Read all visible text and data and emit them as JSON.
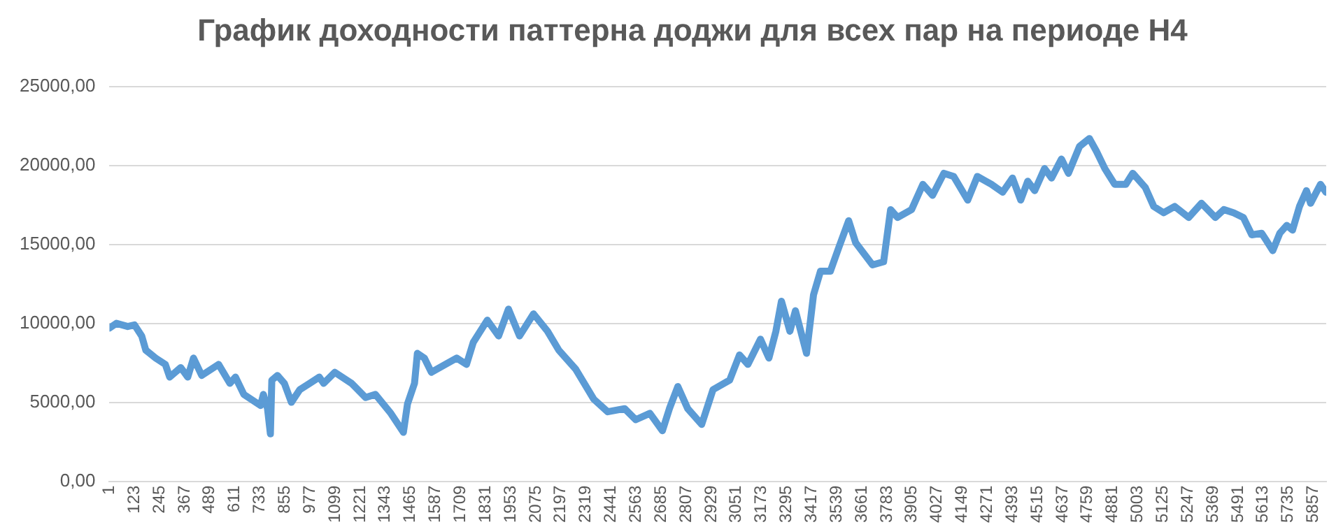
{
  "chart_data": {
    "type": "line",
    "title": "График доходности паттерна доджи для всех пар на периоде H4",
    "x": [
      1,
      35,
      90,
      123,
      158,
      178,
      226,
      273,
      294,
      348,
      382,
      410,
      450,
      532,
      587,
      614,
      655,
      736,
      750,
      770,
      784,
      791,
      818,
      852,
      886,
      927,
      975,
      1022,
      1043,
      1097,
      1179,
      1247,
      1295,
      1370,
      1431,
      1451,
      1485,
      1499,
      1533,
      1567,
      1635,
      1690,
      1738,
      1771,
      1839,
      1894,
      1942,
      1996,
      2064,
      2132,
      2187,
      2269,
      2357,
      2425,
      2507,
      2561,
      2630,
      2691,
      2725,
      2766,
      2814,
      2882,
      2937,
      3018,
      3066,
      3107,
      3168,
      3209,
      3243,
      3270,
      3311,
      3338,
      3392,
      3426,
      3460,
      3508,
      3549,
      3597,
      3631,
      3713,
      3767,
      3801,
      3835,
      3903,
      3958,
      4005,
      4060,
      4108,
      4176,
      4223,
      4291,
      4346,
      4394,
      4434,
      4468,
      4502,
      4550,
      4584,
      4632,
      4666,
      4720,
      4768,
      4802,
      4843,
      4891,
      4945,
      4979,
      5040,
      5081,
      5129,
      5183,
      5251,
      5313,
      5381,
      5422,
      5470,
      5517,
      5558,
      5606,
      5626,
      5660,
      5694,
      5728,
      5756,
      5790,
      5824,
      5844,
      5892,
      5919
    ],
    "series": [
      {
        "color": "#5b9bd5",
        "values": [
          9700,
          10000,
          9800,
          9900,
          9200,
          8300,
          7800,
          7400,
          6600,
          7200,
          6600,
          7800,
          6700,
          7400,
          6200,
          6600,
          5500,
          4800,
          5500,
          4600,
          3000,
          6400,
          6700,
          6200,
          5000,
          5800,
          6200,
          6600,
          6200,
          6900,
          6200,
          5300,
          5500,
          4300,
          3100,
          4900,
          6200,
          8100,
          7800,
          6900,
          7400,
          7800,
          7400,
          8800,
          10200,
          9200,
          10900,
          9200,
          10600,
          9500,
          8300,
          7100,
          5200,
          4400,
          4600,
          3900,
          4300,
          3200,
          4600,
          6000,
          4600,
          3600,
          5800,
          6400,
          8000,
          7400,
          9000,
          7800,
          9500,
          11400,
          9500,
          10800,
          8100,
          11800,
          13300,
          13300,
          14800,
          16500,
          15100,
          13700,
          13900,
          17200,
          16700,
          17200,
          18800,
          18100,
          19500,
          19300,
          17800,
          19300,
          18800,
          18300,
          19200,
          17800,
          19000,
          18400,
          19800,
          19200,
          20400,
          19500,
          21200,
          21700,
          20900,
          19800,
          18800,
          18800,
          19500,
          18600,
          17400,
          17000,
          17400,
          16700,
          17600,
          16700,
          17200,
          17000,
          16700,
          15600,
          15700,
          15300,
          14600,
          15700,
          16200,
          15900,
          17400,
          18400,
          17600,
          18800,
          18300
        ]
      }
    ],
    "xlim": [
      1,
      5920
    ],
    "xticks": [
      1,
      123,
      245,
      367,
      489,
      611,
      733,
      855,
      977,
      1099,
      1221,
      1343,
      1465,
      1587,
      1709,
      1831,
      1953,
      2075,
      2197,
      2319,
      2441,
      2563,
      2685,
      2807,
      2929,
      3051,
      3173,
      3295,
      3417,
      3539,
      3661,
      3783,
      3905,
      4027,
      4149,
      4271,
      4393,
      4515,
      4637,
      4759,
      4881,
      5003,
      5125,
      5247,
      5369,
      5491,
      5613,
      5735,
      5857
    ],
    "ylim": [
      0,
      25000
    ],
    "yticks": [
      {
        "value": 0,
        "label": "0,00"
      },
      {
        "value": 5000,
        "label": "5000,00"
      },
      {
        "value": 10000,
        "label": "10000,00"
      },
      {
        "value": 15000,
        "label": "15000,00"
      },
      {
        "value": 20000,
        "label": "20000,00"
      },
      {
        "value": 25000,
        "label": "25000,00"
      }
    ],
    "grid": "y",
    "legend": false,
    "marker": "none",
    "line_style": "solid"
  }
}
